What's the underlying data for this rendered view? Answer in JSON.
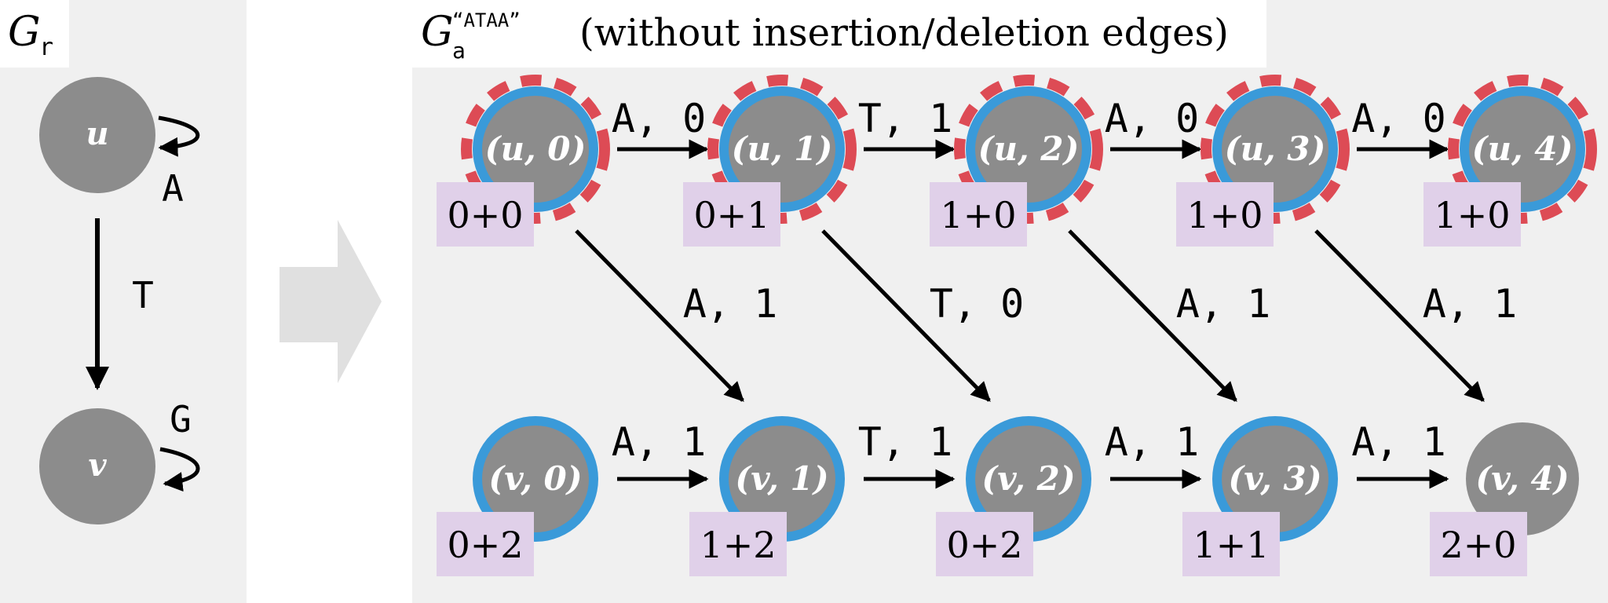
{
  "left_panel": {
    "title_main": "G",
    "title_sub": "r",
    "node_u": "u",
    "node_v": "v",
    "loop_u_label": "A",
    "edge_uv_label": "T",
    "loop_v_label": "G"
  },
  "right_panel": {
    "title_main": "G",
    "title_sub": "a",
    "title_sup": "“ATAA”",
    "title_rest": "(without insertion/deletion edges)",
    "top_nodes": [
      "(u, 0)",
      "(u, 1)",
      "(u, 2)",
      "(u, 3)",
      "(u, 4)"
    ],
    "bottom_nodes": [
      "(v, 0)",
      "(v, 1)",
      "(v, 2)",
      "(v, 3)",
      "(v, 4)"
    ],
    "top_costs": [
      "0+0",
      "0+1",
      "1+0",
      "1+0",
      "1+0"
    ],
    "bottom_costs": [
      "0+2",
      "1+2",
      "0+2",
      "1+1",
      "2+0"
    ],
    "top_edges": [
      "A, 0",
      "T, 1",
      "A, 0",
      "A, 0"
    ],
    "bottom_edges": [
      "A, 1",
      "T, 1",
      "A, 1",
      "A, 1"
    ],
    "diag_edges": [
      "A, 1",
      "T, 0",
      "A, 1",
      "A, 1"
    ]
  },
  "colors": {
    "panel_bg": "#f0f0f0",
    "node_fill": "#8c8c8c",
    "blue_ring": "#3a9ad9",
    "red_dash": "#dd4b55",
    "cost_box": "#e0d0e9",
    "arrow_shape": "#e0e0e0"
  }
}
